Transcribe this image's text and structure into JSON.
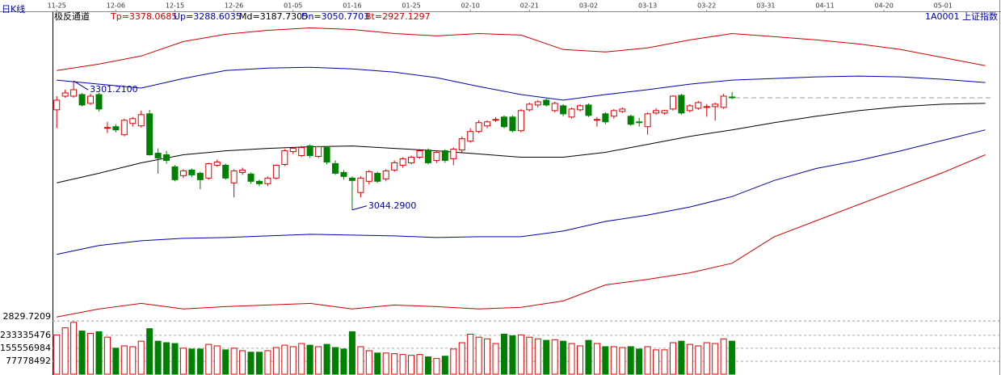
{
  "chart_data": {
    "type": "candlestick",
    "title": "日K线",
    "subtitle": "极反通道",
    "symbol": "1A0001 上证指数",
    "up_color": "#e00000",
    "down_color": "#008000",
    "xlim": [
      -0.5,
      111
    ],
    "xticks": [
      {
        "value": 0,
        "label": "11-25"
      },
      {
        "value": 7,
        "label": "12-06"
      },
      {
        "value": 14,
        "label": "12-15"
      },
      {
        "value": 21,
        "label": "12-26"
      },
      {
        "value": 28,
        "label": "01-05"
      },
      {
        "value": 35,
        "label": "01-16"
      },
      {
        "value": 42,
        "label": "01-25"
      },
      {
        "value": 49,
        "label": "02-10"
      },
      {
        "value": 56,
        "label": "02-21"
      },
      {
        "value": 63,
        "label": "03-02"
      },
      {
        "value": 70,
        "label": "03-13"
      },
      {
        "value": 77,
        "label": "03-22"
      },
      {
        "value": 84,
        "label": "03-31"
      },
      {
        "value": 91,
        "label": "04-11"
      },
      {
        "value": 98,
        "label": "04-20"
      },
      {
        "value": 105,
        "label": "05-01"
      }
    ],
    "ylim": [
      2825,
      3440
    ],
    "yticks": [
      2829.7209
    ],
    "open": [
      3243.8,
      3271,
      3271,
      3274.2,
      3256.6,
      3274.2,
      3207,
      3210.2,
      3194.2,
      3216.6,
      3211.8,
      3235.8,
      3157.4,
      3154.2,
      3130.2,
      3112.6,
      3123.8,
      3117.4,
      3107.8,
      3133.4,
      3133.4,
      3098.2,
      3119,
      3115.8,
      3101.4,
      3096.6,
      3107.8,
      3135,
      3160.6,
      3152.6,
      3171.8,
      3151,
      3168.6,
      3136.6,
      3119,
      3107.8,
      3079,
      3101.4,
      3117.4,
      3106.2,
      3123.8,
      3133.4,
      3138.2,
      3149.4,
      3163.8,
      3143,
      3162.2,
      3146.2,
      3163.8,
      3181.4,
      3200.6,
      3211.8,
      3223,
      3229.4,
      3229.4,
      3202.2,
      3243.8,
      3253.4,
      3263,
      3242.2,
      3251.8,
      3229.4,
      3243.8,
      3253.4,
      3223,
      3235.8,
      3231,
      3240.6,
      3231,
      3219.8,
      3210.2,
      3237.4,
      3237.4,
      3245.4,
      3272.6,
      3242.2,
      3247,
      3248.6,
      3250.2,
      3248.6,
      3269.4
    ],
    "high": [
      3271,
      3283.8,
      3301.21,
      3277.4,
      3275.8,
      3277.4,
      3219.8,
      3215,
      3226.2,
      3229.4,
      3242.2,
      3243.8,
      3167,
      3162.2,
      3133.4,
      3125.4,
      3127,
      3120.6,
      3138.2,
      3144.6,
      3136.6,
      3125.4,
      3128.6,
      3119,
      3104.6,
      3111,
      3135,
      3165.4,
      3170.2,
      3171.8,
      3175,
      3171.8,
      3171.8,
      3143,
      3123.8,
      3111,
      3111,
      3123.8,
      3120.6,
      3125.4,
      3143,
      3149.4,
      3152.6,
      3165.4,
      3167,
      3162.2,
      3165.4,
      3168.6,
      3191,
      3207,
      3223,
      3223,
      3229.4,
      3232.6,
      3232.6,
      3245.4,
      3258.2,
      3263,
      3266.2,
      3259.8,
      3255,
      3248.6,
      3255,
      3256.6,
      3229.4,
      3239,
      3245.4,
      3248.6,
      3234.2,
      3227.8,
      3239,
      3247,
      3243.8,
      3272.6,
      3275.8,
      3255,
      3261.4,
      3255,
      3258.2,
      3275.8,
      3279
    ],
    "low": [
      3207,
      3267.8,
      3267.8,
      3250.2,
      3253.4,
      3240.6,
      3197.4,
      3199,
      3191,
      3210.2,
      3208.6,
      3152.6,
      3116.6,
      3136.6,
      3101.4,
      3107.8,
      3109.4,
      3085.4,
      3104.6,
      3130.2,
      3104.6,
      3069.4,
      3114.2,
      3096.6,
      3091.8,
      3091.8,
      3104.6,
      3131.8,
      3155.8,
      3149.4,
      3147.8,
      3147.8,
      3135,
      3114.2,
      3104.6,
      3044.29,
      3069.4,
      3095,
      3098.2,
      3101.4,
      3120.6,
      3128.6,
      3135,
      3146.2,
      3135,
      3138.2,
      3138.2,
      3133.4,
      3159,
      3178.2,
      3197.4,
      3207,
      3219.8,
      3207,
      3199,
      3199,
      3240.6,
      3248.6,
      3250.2,
      3239,
      3231,
      3226.2,
      3240.6,
      3229.4,
      3210.2,
      3215,
      3226.2,
      3237.4,
      3211.8,
      3210.2,
      3194.2,
      3234.2,
      3234.2,
      3242.2,
      3234.2,
      3239,
      3243.8,
      3230.2,
      3222.2,
      3245.4,
      3265
    ],
    "close": [
      3263,
      3277.4,
      3283.8,
      3253.4,
      3271,
      3245.4,
      3208.6,
      3203.8,
      3223,
      3226.2,
      3234.2,
      3154.2,
      3147.8,
      3143,
      3104.6,
      3122.2,
      3114.2,
      3104.6,
      3136.6,
      3139.8,
      3107.8,
      3122.2,
      3123.8,
      3101.4,
      3096.6,
      3107.8,
      3133.4,
      3162.2,
      3167,
      3168.6,
      3152.6,
      3170.2,
      3139.8,
      3117.4,
      3111,
      3103,
      3107.8,
      3120.6,
      3101.4,
      3122.2,
      3138.2,
      3146.2,
      3149.4,
      3162.2,
      3138.2,
      3159,
      3143,
      3165.4,
      3186.2,
      3200.6,
      3218.2,
      3219.8,
      3224.6,
      3210.2,
      3202.2,
      3242.2,
      3255,
      3259.8,
      3253.4,
      3256.6,
      3235.8,
      3245.4,
      3251.8,
      3232.6,
      3224.6,
      3219.8,
      3242.2,
      3245.4,
      3215,
      3218.2,
      3235.8,
      3242.2,
      3242.2,
      3271,
      3237.4,
      3251.8,
      3258.2,
      3250.2,
      3255,
      3271,
      3267.8
    ],
    "volume": {
      "ylim": [
        0,
        320000000
      ],
      "yticks": [
        77778492,
        155556984,
        233335476
      ],
      "values": [
        235700000,
        278000000,
        311000000,
        259000000,
        245000000,
        255000000,
        222000000,
        156000000,
        170000000,
        165000000,
        198000000,
        273000000,
        198000000,
        189000000,
        184000000,
        156000000,
        151000000,
        151000000,
        179000000,
        170000000,
        146000000,
        156000000,
        141000000,
        132000000,
        132000000,
        141000000,
        160000000,
        174000000,
        165000000,
        184000000,
        174000000,
        165000000,
        179000000,
        160000000,
        151000000,
        255000000,
        165000000,
        141000000,
        127000000,
        127000000,
        123000000,
        118000000,
        113000000,
        118000000,
        104000000,
        94000000,
        108000000,
        151000000,
        189000000,
        240000000,
        222000000,
        212000000,
        184000000,
        240000000,
        231000000,
        236000000,
        222000000,
        212000000,
        203000000,
        207000000,
        198000000,
        184000000,
        170000000,
        203000000,
        184000000,
        165000000,
        165000000,
        160000000,
        165000000,
        151000000,
        165000000,
        146000000,
        146000000,
        189000000,
        198000000,
        179000000,
        170000000,
        189000000,
        184000000,
        212000000,
        198000000
      ]
    },
    "line_x": [
      0,
      5,
      10,
      15,
      20,
      25,
      30,
      35,
      40,
      45,
      50,
      55,
      60,
      65,
      70,
      75,
      80,
      85,
      90,
      95,
      100,
      105,
      110
    ],
    "series": [
      {
        "label": "Tp=3378.0685",
        "color": "#d00000",
        "values": [
          3322.2,
          3335,
          3351,
          3379.8,
          3394.2,
          3402.2,
          3407,
          3403.8,
          3395.8,
          3391,
          3395.8,
          3392.6,
          3363.8,
          3359,
          3367,
          3383,
          3395.8,
          3389.4,
          3383,
          3375,
          3363.8,
          3347.8,
          3331.8
        ]
      },
      {
        "label": "Up=3288.6035",
        "color": "#0000b0",
        "values": [
          3303,
          3295,
          3287,
          3306.2,
          3322.2,
          3327,
          3328.6,
          3325.4,
          3319,
          3307.8,
          3290.2,
          3274.2,
          3263,
          3274.2,
          3283.8,
          3295,
          3303,
          3306.2,
          3309.4,
          3311,
          3309.4,
          3304.6,
          3298.2
        ]
      },
      {
        "label": "Md=3187.7305",
        "color": "#000000",
        "values": [
          3098.2,
          3117.4,
          3138.2,
          3154.2,
          3162.2,
          3167,
          3170.2,
          3171.8,
          3167,
          3162.2,
          3155.8,
          3149.4,
          3149.4,
          3159,
          3175,
          3191,
          3203.8,
          3218.2,
          3231,
          3242.2,
          3250.2,
          3255,
          3256.6
        ]
      },
      {
        "label": "Dn=3050.7703",
        "color": "#0000b0",
        "values": [
          2955.8,
          2973.4,
          2983,
          2987.8,
          2989.4,
          2992.6,
          2995.8,
          2994.2,
          2992.6,
          2989.4,
          2991,
          2991,
          3002.2,
          3021.4,
          3034.2,
          3050.2,
          3071,
          3103,
          3127,
          3143,
          3162.2,
          3183,
          3203.8
        ]
      },
      {
        "label": "Bt=2927.1297",
        "color": "#d00000",
        "values": [
          2831,
          2847,
          2858.2,
          2847,
          2851.8,
          2855,
          2858.2,
          2847,
          2855,
          2851.8,
          2847,
          2850.2,
          2863,
          2895,
          2906.2,
          2919,
          2938.2,
          2991,
          3023,
          3055,
          3087,
          3119,
          3154.2
        ]
      }
    ],
    "annotations": [
      {
        "label": "3301.2100",
        "index": 2,
        "value": 3301.21
      },
      {
        "label": "3044.2900",
        "index": 35,
        "value": 3044.29
      }
    ]
  }
}
